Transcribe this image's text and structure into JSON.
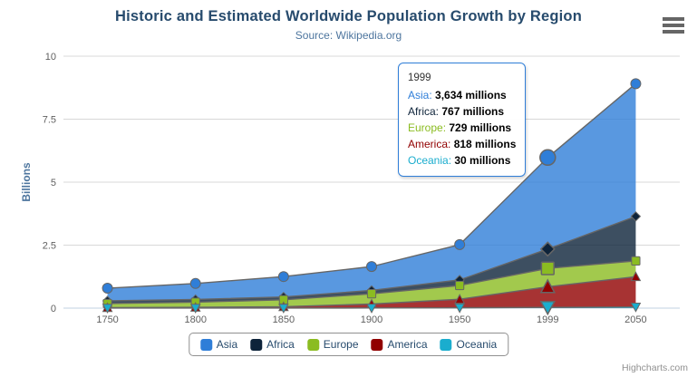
{
  "header": {
    "title": "Historic and Estimated Worldwide Population Growth by Region",
    "subtitle": "Source: Wikipedia.org"
  },
  "credits": "Highcharts.com",
  "colors": {
    "title": "#274b6d",
    "subtitle": "#4d759e",
    "axis_title": "#4d759e",
    "tick_label": "#606060",
    "grid": "#d8d8d8",
    "axis_line": "#c0d0e0",
    "series_line": "#666666",
    "legend_text": "#274b6d",
    "legend_border": "#909090",
    "credits": "#909090",
    "tooltip_border": "#2f7ed8",
    "background": "#ffffff"
  },
  "chart_data": {
    "type": "area",
    "stacking": "normal",
    "title": "Historic and Estimated Worldwide Population Growth by Region",
    "subtitle": "Source: Wikipedia.org",
    "xlabel": "",
    "ylabel": "Billions",
    "units": "millions",
    "categories": [
      "1750",
      "1800",
      "1850",
      "1900",
      "1950",
      "1999",
      "2050"
    ],
    "yticks": [
      0,
      2.5,
      5,
      7.5,
      10
    ],
    "ylim": [
      0,
      10
    ],
    "grid": true,
    "legend_position": "bottom",
    "hover_index": 5,
    "fill_opacity": 0.8,
    "series": [
      {
        "name": "Asia",
        "color": "#2f7ed8",
        "marker": "circle",
        "values": [
          502,
          635,
          809,
          947,
          1402,
          3634,
          5268
        ]
      },
      {
        "name": "Africa",
        "color": "#0d233a",
        "marker": "diamond",
        "values": [
          106,
          107,
          111,
          133,
          221,
          767,
          1766
        ]
      },
      {
        "name": "Europe",
        "color": "#8bbc21",
        "marker": "square",
        "values": [
          163,
          203,
          276,
          408,
          547,
          729,
          628
        ]
      },
      {
        "name": "America",
        "color": "#910000",
        "marker": "triangle",
        "values": [
          18,
          31,
          54,
          156,
          339,
          818,
          1201
        ]
      },
      {
        "name": "Oceania",
        "color": "#1aadce",
        "marker": "triangle-down",
        "values": [
          2,
          2,
          2,
          6,
          13,
          30,
          46
        ]
      }
    ]
  },
  "tooltip": {
    "header": "1999",
    "rows": [
      {
        "name": "Asia",
        "value": "3,634 millions",
        "color": "#2f7ed8"
      },
      {
        "name": "Africa",
        "value": "767 millions",
        "color": "#0d233a"
      },
      {
        "name": "Europe",
        "value": "729 millions",
        "color": "#8bbc21"
      },
      {
        "name": "America",
        "value": "818 millions",
        "color": "#910000"
      },
      {
        "name": "Oceania",
        "value": "30 millions",
        "color": "#1aadce"
      }
    ]
  },
  "legend": {
    "items": [
      "Asia",
      "Africa",
      "Europe",
      "America",
      "Oceania"
    ]
  }
}
